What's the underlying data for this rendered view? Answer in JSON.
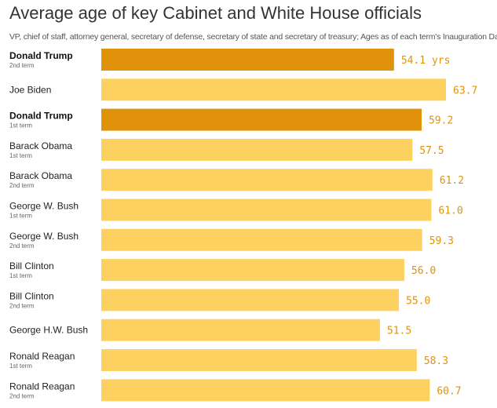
{
  "chart_data": {
    "type": "bar",
    "orientation": "horizontal",
    "title": "Average age of key Cabinet and White House officials",
    "subtitle": "VP, chief of staff, attorney general, secretary of defense, secretary of state and secretary of treasury; Ages as of each term's Inauguration Day",
    "value_suffix_first": " yrs",
    "xlim": [
      0,
      63.7
    ],
    "colors": {
      "highlight": "#E0930A",
      "default": "#FDD15F",
      "value_label": "#E0930A"
    },
    "categories": [
      {
        "name": "Donald Trump",
        "term": "2nd term",
        "value": 54.1,
        "label": "54.1 yrs",
        "highlight": true
      },
      {
        "name": "Joe Biden",
        "term": "",
        "value": 63.7,
        "label": "63.7",
        "highlight": false
      },
      {
        "name": "Donald Trump",
        "term": "1st term",
        "value": 59.2,
        "label": "59.2",
        "highlight": true
      },
      {
        "name": "Barack Obama",
        "term": "1st term",
        "value": 57.5,
        "label": "57.5",
        "highlight": false
      },
      {
        "name": "Barack Obama",
        "term": "2nd term",
        "value": 61.2,
        "label": "61.2",
        "highlight": false
      },
      {
        "name": "George W. Bush",
        "term": "1st term",
        "value": 61.0,
        "label": "61.0",
        "highlight": false
      },
      {
        "name": "George W. Bush",
        "term": "2nd term",
        "value": 59.3,
        "label": "59.3",
        "highlight": false
      },
      {
        "name": "Bill Clinton",
        "term": "1st term",
        "value": 56.0,
        "label": "56.0",
        "highlight": false
      },
      {
        "name": "Bill Clinton",
        "term": "2nd term",
        "value": 55.0,
        "label": "55.0",
        "highlight": false
      },
      {
        "name": "George H.W. Bush",
        "term": "",
        "value": 51.5,
        "label": "51.5",
        "highlight": false
      },
      {
        "name": "Ronald Reagan",
        "term": "1st term",
        "value": 58.3,
        "label": "58.3",
        "highlight": false
      },
      {
        "name": "Ronald Reagan",
        "term": "2nd term",
        "value": 60.7,
        "label": "60.7",
        "highlight": false
      }
    ]
  }
}
